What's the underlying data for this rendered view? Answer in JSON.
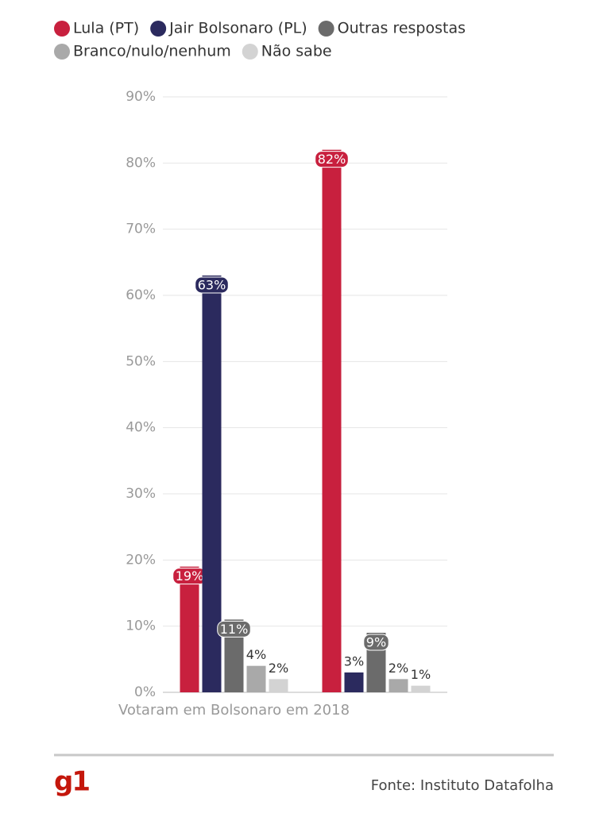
{
  "chart_data": {
    "type": "bar",
    "categories": [
      "Votaram em Bolsonaro em 2018",
      null
    ],
    "series": [
      {
        "name": "Lula (PT)",
        "color": "#c8203e",
        "values": [
          19,
          82
        ],
        "value_labels": [
          "19%",
          "82%"
        ]
      },
      {
        "name": "Jair Bolsonaro (PL)",
        "color": "#2b2a5e",
        "values": [
          63,
          3
        ],
        "value_labels": [
          "63%",
          "3%"
        ]
      },
      {
        "name": "Outras respostas",
        "color": "#6b6b6b",
        "values": [
          11,
          9
        ],
        "value_labels": [
          "11%",
          "9%"
        ]
      },
      {
        "name": "Branco/nulo/nenhum",
        "color": "#a9a9a9",
        "values": [
          4,
          2
        ],
        "value_labels": [
          "4%",
          "2%"
        ]
      },
      {
        "name": "Não sabe",
        "color": "#d3d3d3",
        "values": [
          2,
          1
        ],
        "value_labels": [
          "2%",
          "1%"
        ]
      }
    ],
    "ylim": [
      0,
      90
    ],
    "yticks": [
      {
        "value": 0,
        "label": "0%"
      },
      {
        "value": 10,
        "label": "10%"
      },
      {
        "value": 20,
        "label": "20%"
      },
      {
        "value": 30,
        "label": "30%"
      },
      {
        "value": 40,
        "label": "40%"
      },
      {
        "value": 50,
        "label": "50%"
      },
      {
        "value": 60,
        "label": "60%"
      },
      {
        "value": 70,
        "label": "70%"
      },
      {
        "value": 80,
        "label": "80%"
      },
      {
        "value": 90,
        "label": "90%"
      }
    ],
    "grid": true,
    "legend": "top",
    "logo": "g1",
    "source": "Fonte: Instituto Datafolha"
  }
}
